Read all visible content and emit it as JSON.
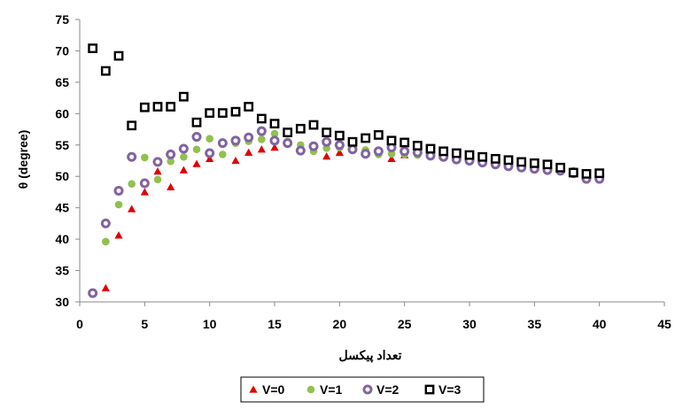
{
  "chart_data": {
    "type": "scatter",
    "xlabel": "تعداد پیکسل",
    "ylabel": "θ (degree)",
    "xlim": [
      0,
      45
    ],
    "ylim": [
      30,
      75
    ],
    "x_ticks": [
      0,
      5,
      10,
      15,
      20,
      25,
      30,
      35,
      40,
      45
    ],
    "y_ticks": [
      30,
      35,
      40,
      45,
      50,
      55,
      60,
      65,
      70,
      75
    ],
    "grid": false,
    "legend_position": "bottom",
    "series": [
      {
        "name": "V=0",
        "marker": "triangle",
        "color": "#e00000",
        "x": [
          2,
          3,
          4,
          5,
          6,
          7,
          8,
          9,
          10,
          12,
          13,
          14,
          15,
          19,
          20,
          24,
          25
        ],
        "y": [
          32.2,
          40.6,
          44.8,
          47.5,
          50.8,
          48.3,
          51.0,
          52.0,
          52.8,
          52.5,
          53.8,
          54.3,
          54.6,
          53.2,
          53.8,
          52.8,
          53.4
        ]
      },
      {
        "name": "V=1",
        "marker": "circle",
        "color": "#92c050",
        "x": [
          2,
          3,
          4,
          5,
          6,
          7,
          8,
          9,
          10,
          11,
          12,
          13,
          14,
          15,
          16,
          17,
          18,
          19,
          20,
          21,
          22,
          23,
          24,
          25,
          26,
          27,
          28,
          29,
          30,
          31,
          32,
          33,
          34,
          35,
          36,
          37,
          38,
          39,
          40
        ],
        "y": [
          39.6,
          45.5,
          48.8,
          53.0,
          49.5,
          52.4,
          53.1,
          54.3,
          56.0,
          53.5,
          55.3,
          55.6,
          55.9,
          56.8,
          55.6,
          55.0,
          54.0,
          54.5,
          54.6,
          54.3,
          54.2,
          53.5,
          53.6,
          53.5,
          53.4,
          53.2,
          53.0,
          52.8,
          52.6,
          52.3,
          52.0,
          51.7,
          51.5,
          51.3,
          51.1,
          51.0,
          50.9,
          50.4,
          50.0
        ]
      },
      {
        "name": "V=2",
        "marker": "ring",
        "color": "#8064a2",
        "x": [
          1,
          2,
          3,
          4,
          5,
          6,
          7,
          8,
          9,
          10,
          11,
          12,
          13,
          14,
          15,
          16,
          17,
          18,
          19,
          20,
          21,
          22,
          23,
          24,
          25,
          26,
          27,
          28,
          29,
          30,
          31,
          32,
          33,
          34,
          35,
          36,
          37,
          38,
          39,
          40
        ],
        "y": [
          31.4,
          42.5,
          47.7,
          53.1,
          48.9,
          52.3,
          53.5,
          54.4,
          56.3,
          53.7,
          55.3,
          55.7,
          56.2,
          57.2,
          55.7,
          55.3,
          54.1,
          54.8,
          55.5,
          55.0,
          54.3,
          53.6,
          54.0,
          54.6,
          54.0,
          53.8,
          53.3,
          53.1,
          52.7,
          52.5,
          52.2,
          51.9,
          51.6,
          51.4,
          51.2,
          51.0,
          50.9,
          50.5,
          49.6,
          49.6
        ]
      },
      {
        "name": "V=3",
        "marker": "square",
        "color": "#000000",
        "x": [
          1,
          2,
          3,
          4,
          5,
          6,
          7,
          8,
          9,
          10,
          11,
          12,
          13,
          14,
          15,
          16,
          17,
          18,
          19,
          20,
          21,
          22,
          23,
          24,
          25,
          26,
          27,
          28,
          29,
          30,
          31,
          32,
          33,
          34,
          35,
          36,
          37,
          38,
          39,
          40
        ],
        "y": [
          70.4,
          66.8,
          69.2,
          58.1,
          61.0,
          61.1,
          61.1,
          62.7,
          58.6,
          60.1,
          60.1,
          60.3,
          61.1,
          59.2,
          58.4,
          57.0,
          57.6,
          58.2,
          57.0,
          56.5,
          55.5,
          56.1,
          56.6,
          55.7,
          55.4,
          54.9,
          54.4,
          54.0,
          53.7,
          53.4,
          53.1,
          52.8,
          52.6,
          52.3,
          52.1,
          51.9,
          51.4,
          50.6,
          50.4,
          50.5
        ]
      }
    ]
  }
}
